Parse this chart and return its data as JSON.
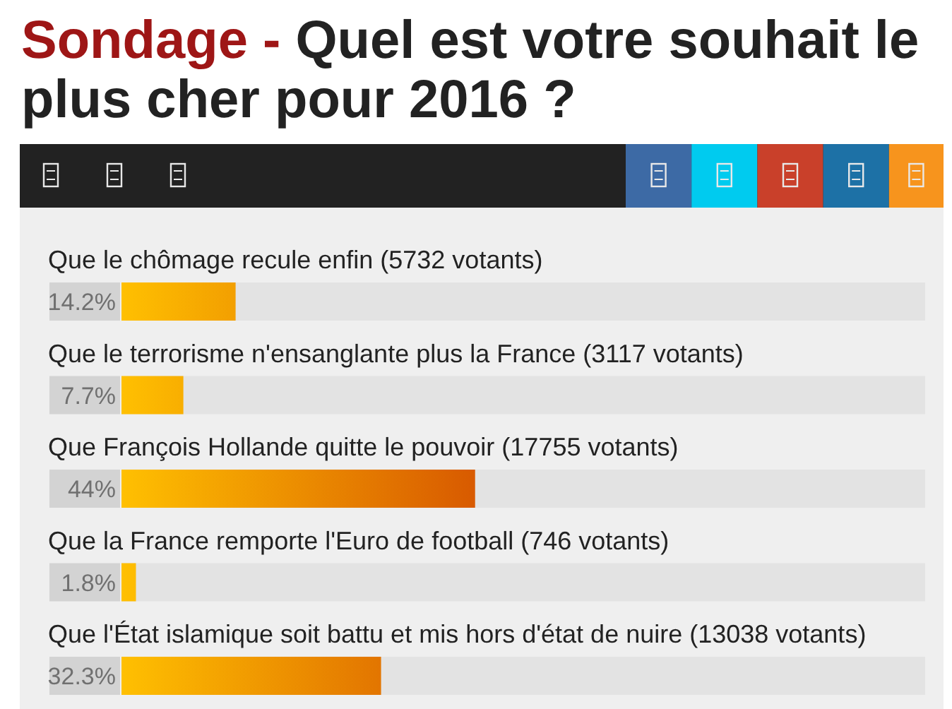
{
  "chart_data": {
    "type": "bar",
    "orientation": "horizontal",
    "title": "Sondage - Quel est votre souhait le plus cher pour 2016 ?",
    "categories": [
      "Que le chômage recule enfin (5732 votants)",
      "Que le terrorisme n'ensanglante plus la France (3117 votants)",
      "Que François Hollande quitte le pouvoir (17755 votants)",
      "Que la France remporte l'Euro de football (746 votants)",
      "Que l'État islamique soit battu et mis hors d'état de nuire (13038 votants)"
    ],
    "values": [
      14.2,
      7.7,
      44,
      1.8,
      32.3
    ],
    "value_labels": [
      "14.2%",
      "7.7%",
      "44%",
      "1.8%",
      "32.3%"
    ],
    "color": "#ec9a00",
    "tick_labels": "y"
  }
}
